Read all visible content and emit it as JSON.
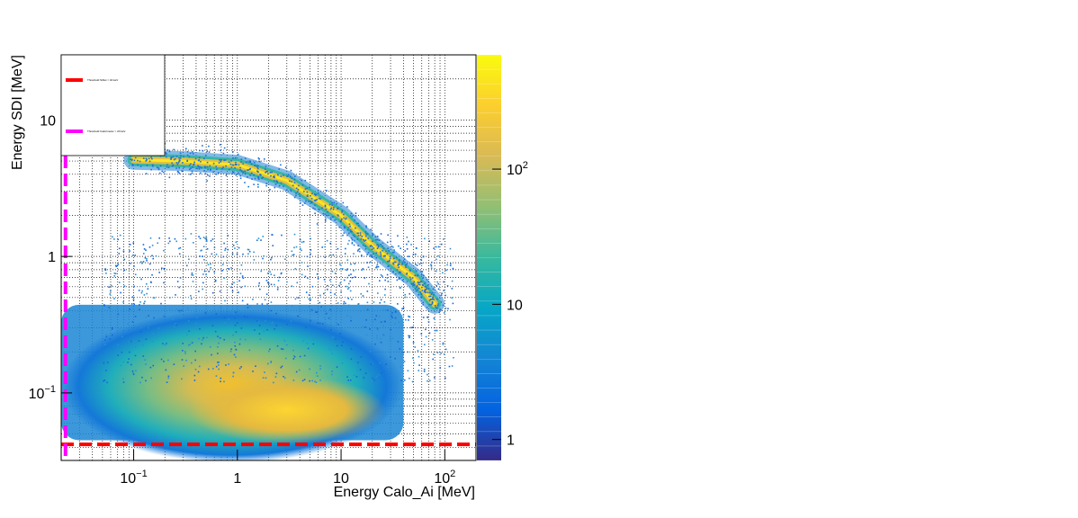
{
  "chart_data": {
    "type": "heatmap",
    "title": "",
    "xlabel": "Energy Calo_Ai [MeV]",
    "ylabel": "Energy SDI [MeV]",
    "x_scale": "log",
    "y_scale": "log",
    "xlim": [
      0.02,
      200
    ],
    "ylim": [
      0.032,
      30
    ],
    "x_ticks": [
      {
        "value": 0.1,
        "base": "10",
        "exp": "−1"
      },
      {
        "value": 1,
        "base": "1",
        "exp": ""
      },
      {
        "value": 10,
        "base": "10",
        "exp": ""
      },
      {
        "value": 100,
        "base": "10",
        "exp": "2"
      }
    ],
    "y_ticks": [
      {
        "value": 0.1,
        "base": "10",
        "exp": "−1"
      },
      {
        "value": 1,
        "base": "1",
        "exp": ""
      },
      {
        "value": 10,
        "base": "10",
        "exp": ""
      }
    ],
    "grid": true,
    "colorbar": {
      "scale": "log",
      "range": [
        0.7,
        700
      ],
      "palette": [
        "#352a87",
        "#0363e1",
        "#1485d4",
        "#06a7c6",
        "#38b99e",
        "#92bf73",
        "#d9ba56",
        "#fcce2e",
        "#f9fb0e"
      ],
      "ticks": [
        {
          "value": 1,
          "base": "1",
          "exp": ""
        },
        {
          "value": 10,
          "base": "10",
          "exp": ""
        },
        {
          "value": 100,
          "base": "10",
          "exp": "2"
        }
      ]
    },
    "density_regions": [
      {
        "region": "low-energy band",
        "x_range": [
          0.02,
          40
        ],
        "y_range": [
          0.045,
          0.6
        ],
        "peak_x": 3,
        "peak_y": 0.075,
        "peak_counts": 300
      },
      {
        "region": "punch-through curve",
        "points": [
          [
            0.1,
            5.1
          ],
          [
            0.3,
            5.0
          ],
          [
            1,
            4.7
          ],
          [
            3,
            3.6
          ],
          [
            10,
            2.0
          ],
          [
            20,
            1.2
          ],
          [
            50,
            0.7
          ],
          [
            80,
            0.45
          ]
        ],
        "peak_counts": 700
      }
    ],
    "lines": [
      {
        "name": "Threshold SiDet > 40 keV",
        "orientation": "horizontal",
        "value": 0.042,
        "color": "#ff0000",
        "style": "dashed"
      },
      {
        "name": "Threshold Calorimeter > 20 keV",
        "orientation": "vertical",
        "value": 0.022,
        "color": "#ff00ff",
        "style": "dashed"
      }
    ],
    "legend": {
      "placement": "top-left",
      "entries": [
        "Threshold SiDet > 40 keV",
        "Threshold Calorimeter > 20 keV"
      ]
    }
  }
}
